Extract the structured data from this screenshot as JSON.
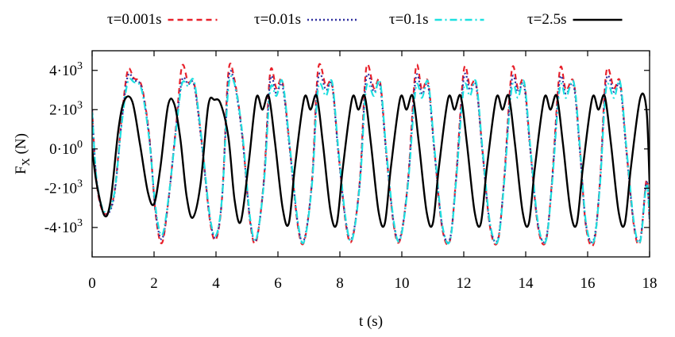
{
  "chart_data": {
    "type": "line",
    "xlabel": "t (s)",
    "ylabel_main": "F",
    "ylabel_sub": "X",
    "ylabel_unit": " (N)",
    "xlim": [
      0,
      18
    ],
    "ylim": [
      -5500,
      5000
    ],
    "x_ticks": [
      0,
      2,
      4,
      6,
      8,
      10,
      12,
      14,
      16,
      18
    ],
    "x_tick_labels": [
      "0",
      "2",
      "4",
      "6",
      "8",
      "10",
      "12",
      "14",
      "16",
      "18"
    ],
    "y_ticks": [
      {
        "value": 4000,
        "mantissa": "4·10",
        "exp": "3"
      },
      {
        "value": 2000,
        "mantissa": "2·10",
        "exp": "3"
      },
      {
        "value": 0,
        "mantissa": "0·10",
        "exp": "0"
      },
      {
        "value": -2000,
        "mantissa": "-2·10",
        "exp": "3"
      },
      {
        "value": -4000,
        "mantissa": "-4·10",
        "exp": "3"
      }
    ],
    "grid": false,
    "legend_position": "top",
    "period": 1.55,
    "series": [
      {
        "name": "τ=0.001s",
        "color": "#e8212b",
        "style": "dashed",
        "x": [
          0,
          0.15,
          0.4,
          0.7,
          0.95,
          1.15,
          1.35,
          1.6,
          1.85,
          2.05,
          2.25,
          2.45,
          2.7,
          2.9,
          3.1,
          3.3,
          3.55,
          3.8,
          4.0,
          4.2,
          4.4,
          4.6,
          4.85,
          5.1,
          5.3,
          5.55,
          5.75,
          5.95,
          6.15,
          6.4,
          6.65,
          6.85,
          7.1,
          7.3,
          7.55,
          7.75,
          7.95,
          8.2,
          8.4,
          8.65,
          8.85,
          9.1,
          9.3,
          9.5,
          9.75,
          9.95,
          10.2,
          10.45,
          10.65,
          10.85,
          11.05,
          11.3,
          11.55,
          11.75,
          12.0,
          12.2,
          12.4,
          12.6,
          12.85,
          13.1,
          13.3,
          13.55,
          13.75,
          13.95,
          14.15,
          14.4,
          14.65,
          14.85,
          15.1,
          15.3,
          15.55,
          15.75,
          15.95,
          16.2,
          16.4,
          16.6,
          16.85,
          17.05,
          17.25,
          17.5,
          17.7,
          17.9,
          18.0
        ],
        "y": [
          2000,
          -1800,
          -3300,
          -2400,
          1500,
          4000,
          3600,
          3200,
          600,
          -3300,
          -4800,
          -2800,
          1000,
          4200,
          3400,
          3300,
          200,
          -3600,
          -4600,
          -2400,
          3900,
          3500,
          700,
          -3700,
          -4700,
          -1500,
          3900,
          3100,
          3400,
          -200,
          -4000,
          -4700,
          -1600,
          4100,
          3200,
          3300,
          -100,
          -3900,
          -4600,
          -1500,
          4100,
          3100,
          3400,
          -200,
          -4000,
          -4600,
          -1600,
          4100,
          3000,
          3400,
          0,
          -4000,
          -4700,
          -1500,
          4000,
          3200,
          3300,
          0,
          -4000,
          -4700,
          -1600,
          4000,
          3100,
          3400,
          0,
          -4000,
          -4700,
          -1600,
          4000,
          3000,
          3400,
          0,
          -4000,
          -4800,
          -1600,
          3900,
          3100,
          3400,
          0,
          -4000,
          -4700,
          -1600,
          -3700
        ]
      },
      {
        "name": "τ=0.01s",
        "color": "#3030a0",
        "style": "dotted",
        "x": [
          0,
          0.15,
          0.4,
          0.7,
          0.95,
          1.15,
          1.35,
          1.6,
          1.85,
          2.05,
          2.25,
          2.45,
          2.7,
          2.9,
          3.1,
          3.3,
          3.55,
          3.8,
          4.0,
          4.2,
          4.4,
          4.6,
          4.85,
          5.1,
          5.3,
          5.55,
          5.75,
          5.95,
          6.15,
          6.4,
          6.65,
          6.85,
          7.1,
          7.3,
          7.55,
          7.75,
          7.95,
          8.2,
          8.4,
          8.65,
          8.85,
          9.1,
          9.3,
          9.5,
          9.75,
          9.95,
          10.2,
          10.45,
          10.65,
          10.85,
          11.05,
          11.3,
          11.55,
          11.75,
          12.0,
          12.2,
          12.4,
          12.6,
          12.85,
          13.1,
          13.3,
          13.55,
          13.75,
          13.95,
          14.15,
          14.4,
          14.65,
          14.85,
          15.1,
          15.3,
          15.55,
          15.75,
          15.95,
          16.2,
          16.4,
          16.6,
          16.85,
          17.05,
          17.25,
          17.5,
          17.7,
          17.9,
          18.0
        ],
        "y": [
          2000,
          -1700,
          -3300,
          -2500,
          1300,
          3700,
          3500,
          3100,
          500,
          -3200,
          -4600,
          -2800,
          900,
          3500,
          3300,
          3200,
          100,
          -3500,
          -4500,
          -2400,
          3500,
          3300,
          600,
          -3600,
          -4600,
          -1600,
          3500,
          2800,
          3200,
          -300,
          -3900,
          -4600,
          -1700,
          3600,
          3000,
          3200,
          -200,
          -3800,
          -4500,
          -1600,
          3600,
          2900,
          3200,
          -300,
          -3900,
          -4500,
          -1700,
          3600,
          2800,
          3200,
          -100,
          -3900,
          -4600,
          -1600,
          3600,
          3000,
          3200,
          -100,
          -3900,
          -4600,
          -1700,
          3500,
          2900,
          3200,
          -100,
          -3900,
          -4600,
          -1700,
          3500,
          2800,
          3200,
          -100,
          -3900,
          -4600,
          -1700,
          3500,
          2900,
          3200,
          -100,
          -3900,
          -4600,
          -1700,
          -3600
        ]
      },
      {
        "name": "τ=0.1s",
        "color": "#1ee0e0",
        "style": "dashdot",
        "x": [
          0,
          0.15,
          0.4,
          0.7,
          0.95,
          1.15,
          1.35,
          1.6,
          1.85,
          2.05,
          2.25,
          2.45,
          2.7,
          2.9,
          3.1,
          3.3,
          3.55,
          3.8,
          4.0,
          4.2,
          4.4,
          4.6,
          4.85,
          5.1,
          5.3,
          5.55,
          5.75,
          5.95,
          6.15,
          6.4,
          6.65,
          6.85,
          7.1,
          7.3,
          7.55,
          7.75,
          7.95,
          8.2,
          8.4,
          8.65,
          8.85,
          9.1,
          9.3,
          9.5,
          9.75,
          9.95,
          10.2,
          10.45,
          10.65,
          10.85,
          11.05,
          11.3,
          11.55,
          11.75,
          12.0,
          12.2,
          12.4,
          12.6,
          12.85,
          13.1,
          13.3,
          13.55,
          13.75,
          13.95,
          14.15,
          14.4,
          14.65,
          14.85,
          15.1,
          15.3,
          15.55,
          15.75,
          15.95,
          16.2,
          16.4,
          16.6,
          16.85,
          17.05,
          17.25,
          17.5,
          17.7,
          17.9,
          18.0
        ],
        "y": [
          1900,
          -1600,
          -3200,
          -2400,
          1200,
          3400,
          3400,
          3000,
          400,
          -3000,
          -4400,
          -2700,
          800,
          3300,
          3200,
          3400,
          300,
          -3400,
          -4400,
          -2400,
          3100,
          3300,
          800,
          -3500,
          -4600,
          -1700,
          3000,
          2700,
          3400,
          -100,
          -3800,
          -4700,
          -1800,
          3100,
          2700,
          3400,
          0,
          -3700,
          -4600,
          -1700,
          3100,
          2700,
          3400,
          -100,
          -3800,
          -4600,
          -1800,
          3100,
          2600,
          3400,
          100,
          -3800,
          -4700,
          -1700,
          3100,
          2700,
          3400,
          100,
          -3800,
          -4700,
          -1800,
          3100,
          2600,
          3400,
          100,
          -3800,
          -4700,
          -1800,
          3100,
          2600,
          3400,
          100,
          -3800,
          -4700,
          -1800,
          3100,
          2600,
          3400,
          100,
          -3800,
          -4700,
          -1800,
          -3500
        ]
      },
      {
        "name": "τ=2.5s",
        "color": "#000000",
        "style": "solid",
        "x": [
          0,
          0.15,
          0.4,
          0.6,
          0.85,
          1.05,
          1.3,
          1.55,
          1.8,
          2.0,
          2.2,
          2.45,
          2.65,
          2.85,
          3.05,
          3.25,
          3.5,
          3.75,
          3.95,
          4.15,
          4.4,
          4.6,
          4.8,
          5.05,
          5.3,
          5.5,
          5.7,
          5.9,
          6.15,
          6.35,
          6.55,
          6.85,
          7.05,
          7.25,
          7.45,
          7.7,
          7.9,
          8.1,
          8.4,
          8.6,
          8.8,
          9.0,
          9.25,
          9.45,
          9.65,
          9.95,
          10.15,
          10.35,
          10.55,
          10.8,
          11.0,
          11.2,
          11.5,
          11.7,
          11.9,
          12.1,
          12.35,
          12.55,
          12.75,
          13.05,
          13.25,
          13.45,
          13.65,
          13.9,
          14.1,
          14.3,
          14.6,
          14.8,
          15.0,
          15.2,
          15.45,
          15.65,
          15.85,
          16.15,
          16.35,
          16.55,
          16.75,
          17.0,
          17.2,
          17.4,
          17.7,
          17.9,
          18.0
        ],
        "y": [
          0,
          -1800,
          -3400,
          -2600,
          1000,
          2500,
          2400,
          200,
          -2200,
          -2800,
          -1000,
          2200,
          2300,
          500,
          -2400,
          -3500,
          -1800,
          2200,
          2500,
          2300,
          600,
          -2600,
          -3700,
          -800,
          2600,
          2000,
          2700,
          400,
          -3000,
          -3800,
          -900,
          2600,
          2000,
          2700,
          300,
          -3200,
          -3800,
          -900,
          2600,
          2000,
          2700,
          300,
          -3200,
          -3800,
          -900,
          2600,
          2000,
          2700,
          300,
          -3200,
          -3800,
          -900,
          2600,
          2000,
          2700,
          300,
          -3200,
          -3800,
          -900,
          2600,
          2000,
          2700,
          300,
          -3200,
          -3800,
          -900,
          2600,
          2000,
          2700,
          300,
          -3200,
          -3800,
          -900,
          2600,
          2000,
          2700,
          300,
          -3200,
          -3800,
          -900,
          2600,
          2000,
          -1800
        ]
      }
    ]
  }
}
